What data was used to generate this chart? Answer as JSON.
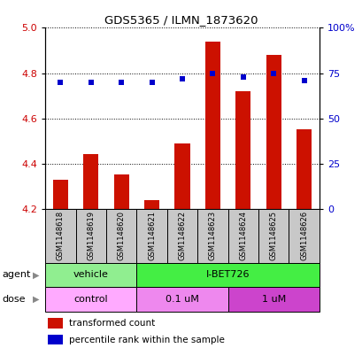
{
  "title": "GDS5365 / ILMN_1873620",
  "samples": [
    "GSM1148618",
    "GSM1148619",
    "GSM1148620",
    "GSM1148621",
    "GSM1148622",
    "GSM1148623",
    "GSM1148624",
    "GSM1148625",
    "GSM1148626"
  ],
  "transformed_counts": [
    4.33,
    4.44,
    4.35,
    4.24,
    4.49,
    4.94,
    4.72,
    4.88,
    4.55
  ],
  "percentile_ranks": [
    70,
    70,
    70,
    70,
    72,
    75,
    73,
    75,
    71
  ],
  "ylim_left": [
    4.2,
    5.0
  ],
  "ylim_right": [
    0,
    100
  ],
  "yticks_left": [
    4.2,
    4.4,
    4.6,
    4.8,
    5.0
  ],
  "yticks_right": [
    0,
    25,
    50,
    75,
    100
  ],
  "agent_groups": [
    {
      "label": "vehicle",
      "start": 0,
      "end": 3,
      "color": "#90EE90"
    },
    {
      "label": "I-BET726",
      "start": 3,
      "end": 9,
      "color": "#44EE44"
    }
  ],
  "dose_groups": [
    {
      "label": "control",
      "start": 0,
      "end": 3,
      "color": "#FFAAFF"
    },
    {
      "label": "0.1 uM",
      "start": 3,
      "end": 6,
      "color": "#EE88EE"
    },
    {
      "label": "1 uM",
      "start": 6,
      "end": 9,
      "color": "#CC44CC"
    }
  ],
  "bar_color": "#CC1100",
  "marker_color": "#0000CC",
  "bar_bottom": 4.2,
  "tick_label_color_left": "#CC0000",
  "tick_label_color_right": "#0000CC",
  "legend_items": [
    {
      "label": "transformed count",
      "color": "#CC1100"
    },
    {
      "label": "percentile rank within the sample",
      "color": "#0000CC"
    }
  ],
  "agent_label": "agent",
  "dose_label": "dose",
  "sample_box_color": "#C8C8C8",
  "title_fontsize": 9.5,
  "tick_fontsize": 8,
  "label_fontsize": 8,
  "bar_width": 0.5
}
